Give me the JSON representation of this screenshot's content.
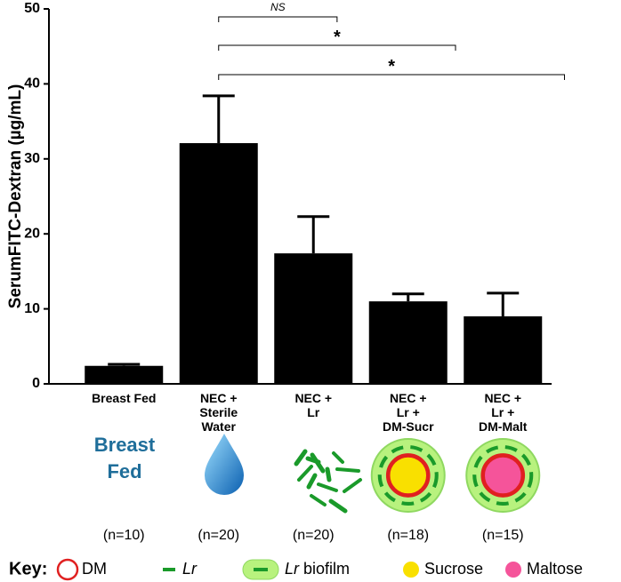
{
  "chart_data": {
    "type": "bar",
    "y_label": "SerumFITC-Dextran (µg/mL)",
    "categories": [
      "Breast Fed",
      "NEC +\nSterile\nWater",
      "NEC +\nLr",
      "NEC +\nLr +\nDM-Sucr",
      "NEC +\nLr +\nDM-Malt"
    ],
    "values": [
      2.4,
      32.1,
      17.4,
      11.0,
      9.0
    ],
    "errors": [
      0.2,
      6.3,
      4.9,
      1.0,
      3.1
    ],
    "color": "#000000",
    "ylim": [
      0,
      50
    ],
    "yticks": [
      0,
      10,
      20,
      30,
      40,
      50
    ],
    "annotations": [
      "NS",
      "*",
      "*"
    ],
    "group_label": "Breast\nFed",
    "n_labels": [
      "(n=10)",
      "(n=20)",
      "(n=20)",
      "(n=18)",
      "(n=15)"
    ],
    "key": {
      "title": "Key:",
      "items": [
        {
          "text": "DM"
        },
        {
          "em": "Lr"
        },
        {
          "em": "Lr",
          "text": "biofilm"
        },
        {
          "text": "Sucrose"
        },
        {
          "text": "Maltose"
        }
      ]
    }
  }
}
